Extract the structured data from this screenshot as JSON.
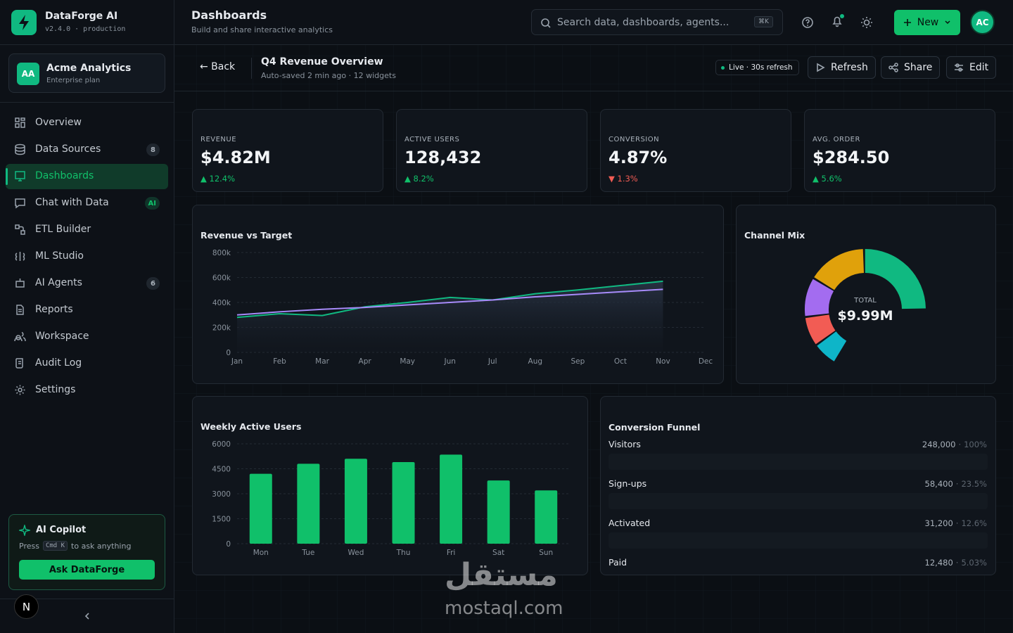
{
  "sidebar": {
    "brand": "DataForge AI",
    "version": "v2.4.0 · production",
    "org": {
      "initials": "AA",
      "name": "Acme Analytics",
      "plan": "Enterprise plan"
    },
    "nav": [
      {
        "label": "Overview"
      },
      {
        "label": "Data Sources",
        "badge": "8"
      },
      {
        "label": "Dashboards",
        "active": true
      },
      {
        "label": "Chat with Data",
        "badge": "AI"
      },
      {
        "label": "ETL Builder"
      },
      {
        "label": "ML Studio"
      },
      {
        "label": "AI Agents",
        "badge": "6"
      },
      {
        "label": "Reports"
      },
      {
        "label": "Workspace"
      },
      {
        "label": "Audit Log"
      },
      {
        "label": "Settings"
      }
    ],
    "copilot": {
      "title": "AI Copilot",
      "hint_before": "Press",
      "shortcut": "Cmd K",
      "hint_after": "to ask anything",
      "button": "Ask DataForge"
    },
    "user_initial": "N"
  },
  "header": {
    "title": "Dashboards",
    "subtitle": "Build and share interactive analytics",
    "search_placeholder": "Search data, dashboards, agents...",
    "search_shortcut": "⌘K",
    "new_button": "New",
    "avatar": "AC"
  },
  "toolbar": {
    "back": "← Back",
    "title": "Q4 Revenue Overview",
    "meta": "Auto-saved 2 min ago · 12 widgets",
    "live": "Live · 30s refresh",
    "buttons": [
      "Refresh",
      "Share",
      "Edit"
    ]
  },
  "kpis": [
    {
      "label": "REVENUE",
      "value": "$4.82M",
      "delta": "▲ 12.4%",
      "trend": "up"
    },
    {
      "label": "ACTIVE USERS",
      "value": "128,432",
      "delta": "▲ 8.2%",
      "trend": "up"
    },
    {
      "label": "CONVERSION",
      "value": "4.87%",
      "delta": "▼ 1.3%",
      "trend": "down"
    },
    {
      "label": "AVG. ORDER",
      "value": "$284.50",
      "delta": "▲ 5.6%",
      "trend": "up"
    }
  ],
  "chart_data": [
    {
      "type": "line",
      "title": "Revenue vs Target",
      "categories": [
        "Jan",
        "Feb",
        "Mar",
        "Apr",
        "May",
        "Jun",
        "Jul",
        "Aug",
        "Sep",
        "Oct",
        "Nov",
        "Dec"
      ],
      "series": [
        {
          "color": "#10b981",
          "values": [
            280000,
            310000,
            295000,
            365000,
            400000,
            440000,
            420000,
            470000,
            500000,
            535000,
            570000,
            null
          ],
          "area": true
        },
        {
          "color": "#a78bfa",
          "values": [
            300000,
            325000,
            345000,
            360000,
            380000,
            400000,
            420000,
            445000,
            465000,
            485000,
            505000,
            null
          ]
        }
      ],
      "ylim": [
        0,
        800000
      ],
      "yticks": [
        0,
        {
          "value": 200000,
          "label": "200k"
        },
        {
          "value": 400000,
          "label": "400k"
        },
        {
          "value": 600000,
          "label": "600k"
        },
        {
          "value": 800000,
          "label": "800k"
        }
      ],
      "grid": true
    },
    {
      "type": "donut",
      "title": "Channel Mix",
      "values": [
        38,
        24,
        16,
        12,
        10
      ],
      "colors": [
        "#10b981",
        "#e0a10b",
        "#a36cf0",
        "#f25c54",
        "#0eb5c8"
      ],
      "sweep_degrees": 240,
      "center_label": "TOTAL",
      "center_value": "$9.99M"
    },
    {
      "type": "bar",
      "title": "Weekly Active Users",
      "categories": [
        "Mon",
        "Tue",
        "Wed",
        "Thu",
        "Fri",
        "Sat",
        "Sun"
      ],
      "values": [
        4200,
        4800,
        5100,
        4900,
        5350,
        3800,
        3200
      ],
      "color": "#10c06a",
      "ylim": [
        0,
        6000
      ],
      "yticks": [
        0,
        1500,
        3000,
        4500,
        6000
      ],
      "grid": true
    }
  ],
  "funnel": {
    "title": "Conversion Funnel",
    "separator": "·",
    "rows": [
      {
        "label": "Visitors",
        "count": "248,000",
        "share": "100%"
      },
      {
        "label": "Sign-ups",
        "count": "58,400",
        "share": "23.5%"
      },
      {
        "label": "Activated",
        "count": "31,200",
        "share": "12.6%"
      },
      {
        "label": "Paid",
        "count": "12,480",
        "share": "5.03%"
      }
    ]
  },
  "watermark": {
    "arabic": "مستقل",
    "latin": "mostaql.com"
  }
}
